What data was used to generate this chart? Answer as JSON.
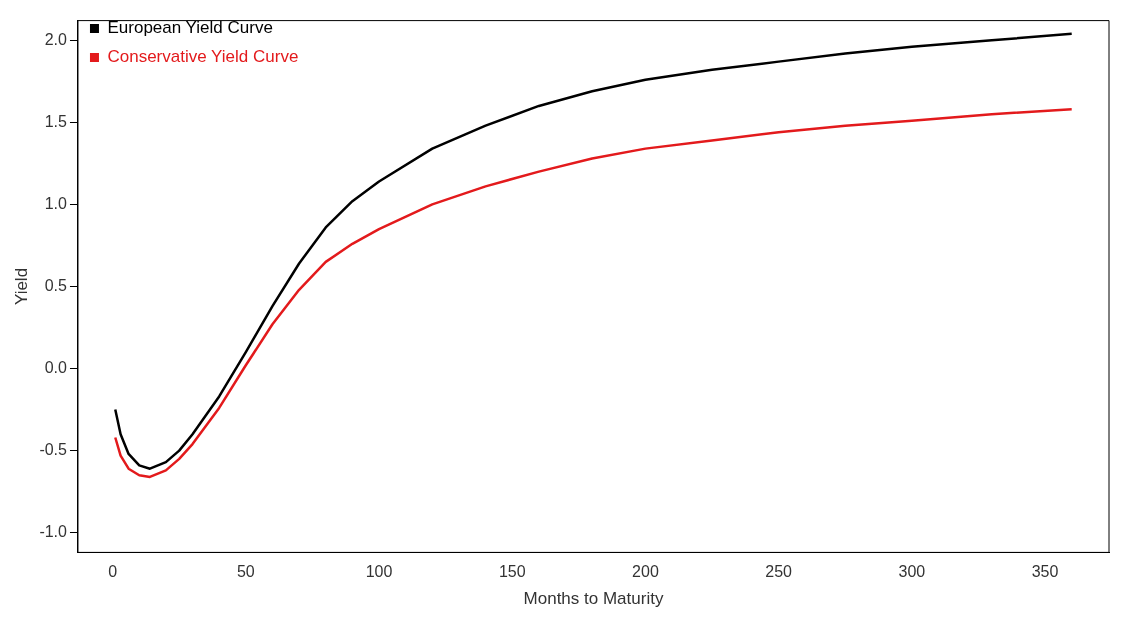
{
  "chart_data": {
    "type": "line",
    "xlabel": "Months to Maturity",
    "ylabel": "Yield",
    "xlim": [
      -13,
      374
    ],
    "ylim": [
      -1.12,
      2.12
    ],
    "xticks": [
      0,
      50,
      100,
      150,
      200,
      250,
      300,
      350
    ],
    "yticks": [
      {
        "value": -1,
        "label": "-1.0"
      },
      {
        "value": -0.5,
        "label": "-0.5"
      },
      {
        "value": 0,
        "label": "0.0"
      },
      {
        "value": 0.5,
        "label": "0.5"
      },
      {
        "value": 1,
        "label": "1.0"
      },
      {
        "value": 1.5,
        "label": "1.5"
      },
      {
        "value": 2,
        "label": "2.0"
      }
    ],
    "x": [
      1,
      3,
      6,
      10,
      14,
      20,
      25,
      30,
      40,
      50,
      60,
      70,
      80,
      90,
      100,
      120,
      140,
      160,
      180,
      200,
      225,
      250,
      275,
      300,
      330,
      360
    ],
    "series": [
      {
        "name": "European Yield Curve",
        "color": "#000000",
        "values": [
          -0.25,
          -0.4,
          -0.52,
          -0.59,
          -0.61,
          -0.57,
          -0.5,
          -0.4,
          -0.17,
          0.1,
          0.38,
          0.64,
          0.86,
          1.02,
          1.14,
          1.34,
          1.48,
          1.6,
          1.69,
          1.76,
          1.82,
          1.87,
          1.92,
          1.96,
          2.0,
          2.04
        ]
      },
      {
        "name": "Conservative Yield Curve",
        "color": "#e31a1c",
        "values": [
          -0.42,
          -0.53,
          -0.61,
          -0.65,
          -0.66,
          -0.62,
          -0.55,
          -0.46,
          -0.24,
          0.02,
          0.27,
          0.48,
          0.65,
          0.76,
          0.85,
          1.0,
          1.11,
          1.2,
          1.28,
          1.34,
          1.39,
          1.44,
          1.48,
          1.51,
          1.55,
          1.58
        ]
      }
    ],
    "grid": false,
    "legend": "top left",
    "marker": "none",
    "line_style": "solid"
  }
}
